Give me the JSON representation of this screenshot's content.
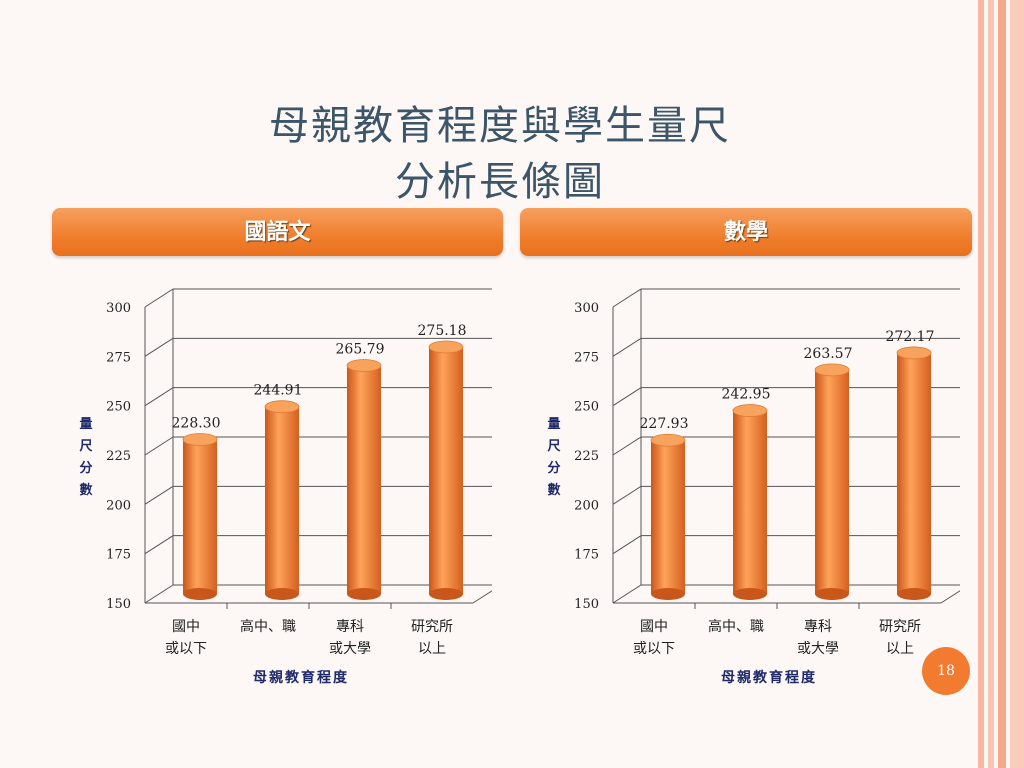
{
  "slide": {
    "title_line1": "母親教育程度與學生量尺",
    "title_line2": "分析長條圖",
    "page_number": "18"
  },
  "colors": {
    "bar": "#f07e2c",
    "tab": "#f07e2c",
    "title": "#3c5568",
    "axis_label": "#1f2a6b"
  },
  "chart_data": [
    {
      "type": "bar",
      "title": "國語文",
      "categories": [
        [
          "國中",
          "或以下"
        ],
        [
          "高中、職"
        ],
        [
          "專科",
          "或大學"
        ],
        [
          "研究所",
          "以上"
        ]
      ],
      "values": [
        228.3,
        244.91,
        265.79,
        275.18
      ],
      "value_labels": [
        "228.30",
        "244.91",
        "265.79",
        "275.18"
      ],
      "ylim": [
        150,
        300
      ],
      "yticks": [
        150,
        175,
        200,
        225,
        250,
        275,
        300
      ],
      "ylabel": "量尺分數",
      "xlabel": "母親教育程度",
      "grid": true
    },
    {
      "type": "bar",
      "title": "數學",
      "categories": [
        [
          "國中",
          "或以下"
        ],
        [
          "高中、職"
        ],
        [
          "專科",
          "或大學"
        ],
        [
          "研究所",
          "以上"
        ]
      ],
      "values": [
        227.93,
        242.95,
        263.57,
        272.17
      ],
      "value_labels": [
        "227.93",
        "242.95",
        "263.57",
        "272.17"
      ],
      "ylim": [
        150,
        300
      ],
      "yticks": [
        150,
        175,
        200,
        225,
        250,
        275,
        300
      ],
      "ylabel": "量尺分數",
      "xlabel": "母親教育程度",
      "grid": true
    }
  ]
}
